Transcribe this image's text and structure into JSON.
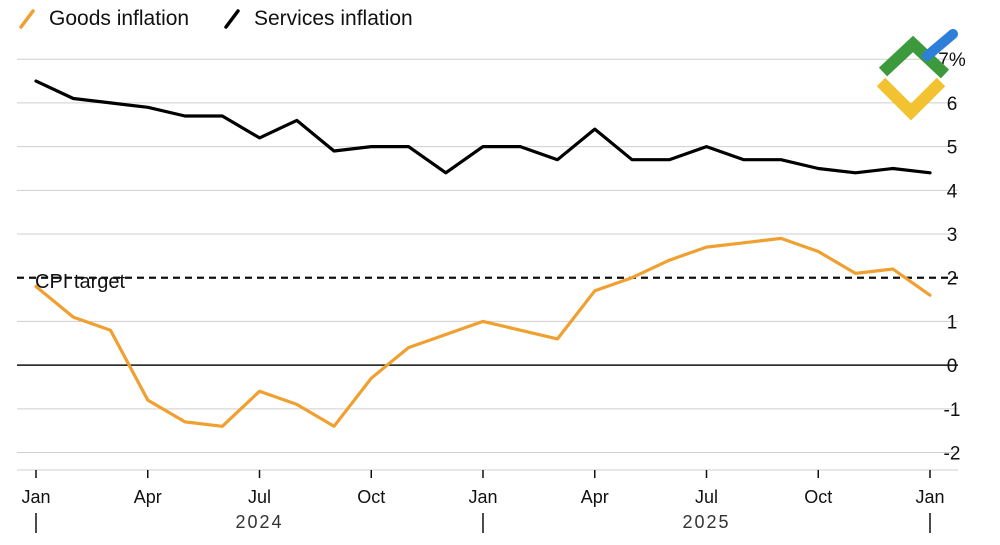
{
  "chart_data": {
    "type": "line",
    "legend": {
      "placement": "top-left",
      "entries": [
        {
          "name": "Goods inflation",
          "color": "#f0a030"
        },
        {
          "name": "Services inflation",
          "color": "#000000"
        }
      ]
    },
    "y_axis": {
      "range": [
        -2.4,
        7.6
      ],
      "ticks": [
        -2,
        -1,
        0,
        1,
        2,
        3,
        4,
        5,
        6,
        7
      ],
      "tick_labels": [
        "-2",
        "-1",
        "0",
        "1",
        "2",
        "3",
        "4",
        "5",
        "6",
        "7%"
      ],
      "side": "right",
      "grid": true
    },
    "x_axis": {
      "months": 25,
      "ticks": [
        {
          "i": 0,
          "label": "Jan"
        },
        {
          "i": 3,
          "label": "Apr"
        },
        {
          "i": 6,
          "label": "Jul"
        },
        {
          "i": 9,
          "label": "Oct"
        },
        {
          "i": 12,
          "label": "Jan"
        },
        {
          "i": 15,
          "label": "Apr"
        },
        {
          "i": 18,
          "label": "Jul"
        },
        {
          "i": 21,
          "label": "Oct"
        },
        {
          "i": 24,
          "label": "Jan"
        }
      ],
      "year_labels": [
        {
          "label": "2024",
          "center": 6
        },
        {
          "label": "2025",
          "center": 18
        }
      ]
    },
    "reference_line": {
      "value": 2,
      "label": "CPI target",
      "style": "dashed"
    },
    "zero_line": 0,
    "series": [
      {
        "name": "Services inflation",
        "color": "#000000",
        "values": [
          6.5,
          6.1,
          6.0,
          5.9,
          5.7,
          5.7,
          5.2,
          5.6,
          4.9,
          5.0,
          5.0,
          4.4,
          5.0,
          5.0,
          4.7,
          5.4,
          4.7,
          4.7,
          5.0,
          4.7,
          4.7,
          4.5,
          4.4,
          4.5,
          4.4
        ]
      },
      {
        "name": "Goods inflation",
        "color": "#f0a030",
        "values": [
          1.8,
          1.1,
          0.8,
          -0.8,
          -1.3,
          -1.4,
          -0.6,
          -0.9,
          -1.4,
          -0.3,
          0.4,
          0.7,
          1.0,
          0.8,
          0.6,
          1.7,
          2.0,
          2.4,
          2.7,
          2.8,
          2.9,
          2.6,
          2.1,
          2.2,
          1.6
        ]
      }
    ]
  },
  "logo": {
    "name": "brand-logo"
  }
}
